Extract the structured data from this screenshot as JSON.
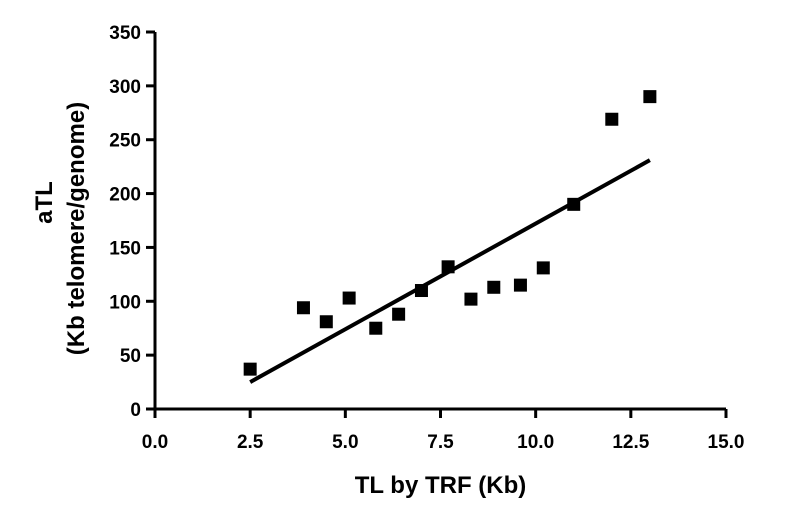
{
  "chart_data": {
    "type": "scatter",
    "xlabel": "TL by TRF (Kb)",
    "ylabel": [
      "aTL",
      "(Kb telomere/genome)"
    ],
    "xlim": [
      0,
      15
    ],
    "ylim": [
      0,
      350
    ],
    "xticks": [
      "0.0",
      "2.5",
      "5.0",
      "7.5",
      "10.0",
      "12.5",
      "15.0"
    ],
    "yticks": [
      "0",
      "50",
      "100",
      "150",
      "200",
      "250",
      "300",
      "350"
    ],
    "grid": false,
    "points": [
      {
        "x": 2.5,
        "y": 37
      },
      {
        "x": 3.9,
        "y": 94
      },
      {
        "x": 4.5,
        "y": 81
      },
      {
        "x": 5.1,
        "y": 103
      },
      {
        "x": 5.8,
        "y": 75
      },
      {
        "x": 6.4,
        "y": 88
      },
      {
        "x": 7.0,
        "y": 110
      },
      {
        "x": 7.7,
        "y": 132
      },
      {
        "x": 8.3,
        "y": 102
      },
      {
        "x": 8.9,
        "y": 113
      },
      {
        "x": 9.6,
        "y": 115
      },
      {
        "x": 10.2,
        "y": 131
      },
      {
        "x": 11.0,
        "y": 190
      },
      {
        "x": 12.0,
        "y": 269
      },
      {
        "x": 13.0,
        "y": 290
      }
    ],
    "trendline": {
      "x": [
        2.5,
        13.0
      ],
      "y": [
        25,
        231
      ]
    },
    "colors": {
      "marker": "#000000",
      "line": "#000000",
      "axis": "#000000"
    }
  }
}
